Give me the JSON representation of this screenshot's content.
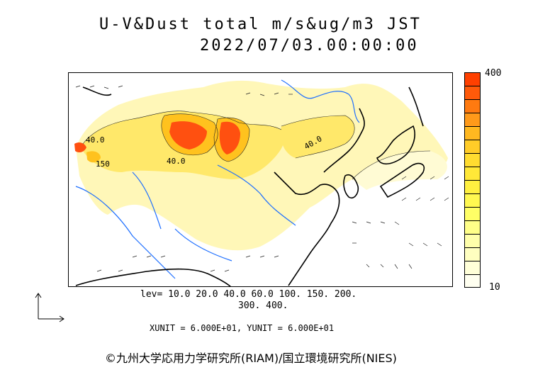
{
  "title": {
    "line1": "U-V&Dust total m/s&ug/m3 JST",
    "line2": "2022/07/03.00:00:00"
  },
  "legend": {
    "max_label": "400",
    "min_label": "10",
    "colors": [
      "#ff4000",
      "#ff5a0a",
      "#ff7a10",
      "#ff9a1a",
      "#ffb820",
      "#ffcc28",
      "#ffdc30",
      "#ffe838",
      "#fff040",
      "#fff850",
      "#ffff66",
      "#ffff88",
      "#ffffaa",
      "#ffffc0",
      "#ffffd8",
      "#fffff0"
    ]
  },
  "contour_labels": {
    "l1": "40.0",
    "l2": "150",
    "l3": "40.0",
    "l4": "40.0"
  },
  "levels": {
    "line1": "lev= 10.0 20.0 40.0 60.0 100. 150. 200.",
    "line2": "300. 400."
  },
  "units": "XUNIT = 6.000E+01, YUNIT = 6.000E+01",
  "copyright": "©九州大学応用力学研究所(RIAM)/国立環境研究所(NIES)",
  "map_colors": {
    "coast": "#000000",
    "river": "#1e6fff",
    "dust_low": "#fff7b8",
    "dust_mid": "#ffe86a",
    "dust_high": "#ffc21e",
    "dust_peak": "#ff5010"
  }
}
